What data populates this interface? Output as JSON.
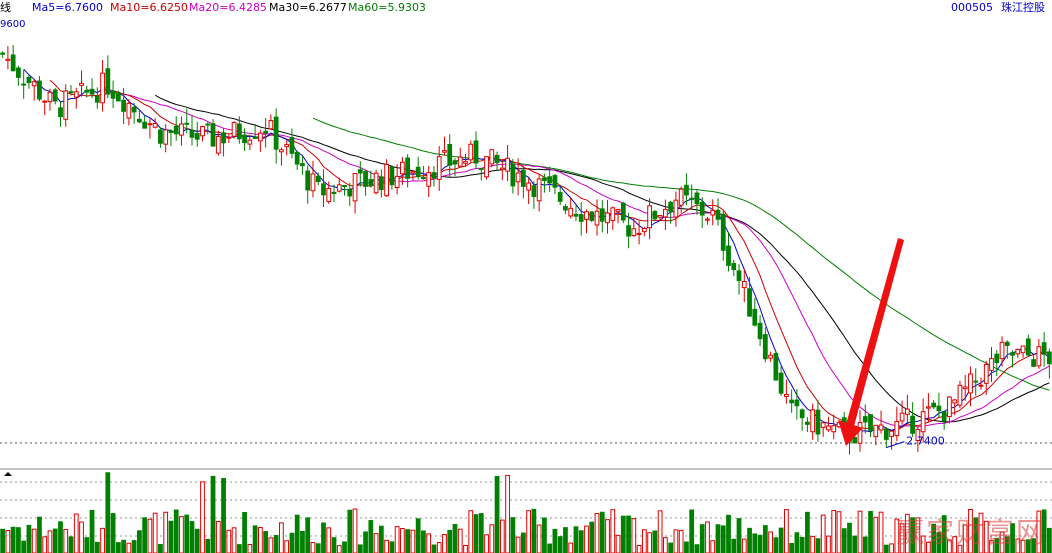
{
  "header": {
    "title_fragment": "线",
    "ma5": "Ma5=6.7600",
    "ma10": "Ma10=6.6250",
    "ma20": "Ma20=6.4285",
    "ma30": "Ma30=6.2677",
    "ma60": "Ma60=5.9303",
    "code": "000505",
    "name": "珠江控股"
  },
  "price_axis_label": "9600",
  "watermark": "赢家财富网",
  "colors": {
    "up": "#e00000",
    "down": "#008000",
    "ma5": "#0000cc",
    "ma10": "#cc0000",
    "ma20": "#cc00cc",
    "ma30": "#000000",
    "ma60": "#008000",
    "arrow": "#ee1111",
    "grid": "#555555"
  },
  "chart_data": {
    "type": "candlestick",
    "symbol": "000505",
    "ma_values": {
      "ma5": 6.76,
      "ma10": 6.625,
      "ma20": 6.4285,
      "ma30": 6.2677,
      "ma60": 5.9303
    },
    "low_annotation": {
      "label": "2.7400",
      "value": 2.74
    },
    "trend_keypoints": {
      "index": [
        0,
        10,
        20,
        30,
        40,
        50,
        60,
        70,
        80,
        90,
        100,
        110,
        120,
        128,
        135,
        142,
        150,
        160,
        170,
        180,
        190,
        199
      ],
      "close": [
        9.3,
        8.4,
        8.8,
        8.0,
        7.9,
        8.1,
        7.0,
        7.2,
        7.4,
        7.6,
        7.2,
        6.7,
        6.4,
        6.9,
        6.6,
        5.1,
        3.3,
        2.95,
        3.1,
        3.4,
        4.3,
        4.25
      ]
    },
    "price_range": [
      2.5,
      9.7
    ],
    "grid": true
  }
}
